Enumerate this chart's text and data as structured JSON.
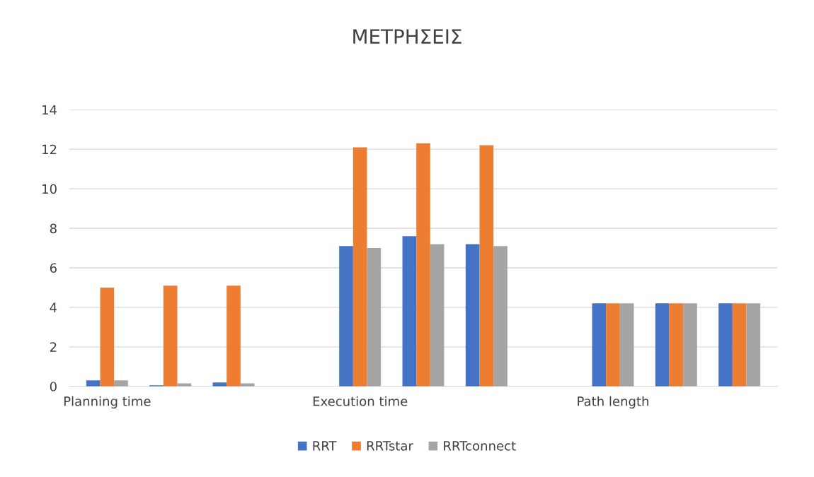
{
  "chart_data": {
    "type": "bar",
    "title": "ΜΕΤΡΗΣΕΙΣ",
    "categories": [
      "Planning time",
      null,
      null,
      null,
      "Execution time",
      null,
      null,
      null,
      "Path length",
      null,
      null
    ],
    "series": [
      {
        "name": "RRT",
        "color": "#4472c4",
        "values": [
          0.3,
          0.05,
          0.2,
          null,
          7.1,
          7.6,
          7.2,
          null,
          4.2,
          4.2,
          4.2
        ]
      },
      {
        "name": "RRTstar",
        "color": "#ed7d31",
        "values": [
          5.0,
          5.1,
          5.1,
          null,
          12.1,
          12.3,
          12.2,
          null,
          4.2,
          4.2,
          4.2
        ]
      },
      {
        "name": "RRTconnect",
        "color": "#a5a5a5",
        "values": [
          0.3,
          0.15,
          0.15,
          null,
          7.0,
          7.2,
          7.1,
          null,
          4.2,
          4.2,
          4.2
        ]
      }
    ],
    "ylim": [
      0,
      14
    ],
    "yticks": [
      0,
      2,
      4,
      6,
      8,
      10,
      12,
      14
    ],
    "grid": "y",
    "legend": "bottom"
  }
}
